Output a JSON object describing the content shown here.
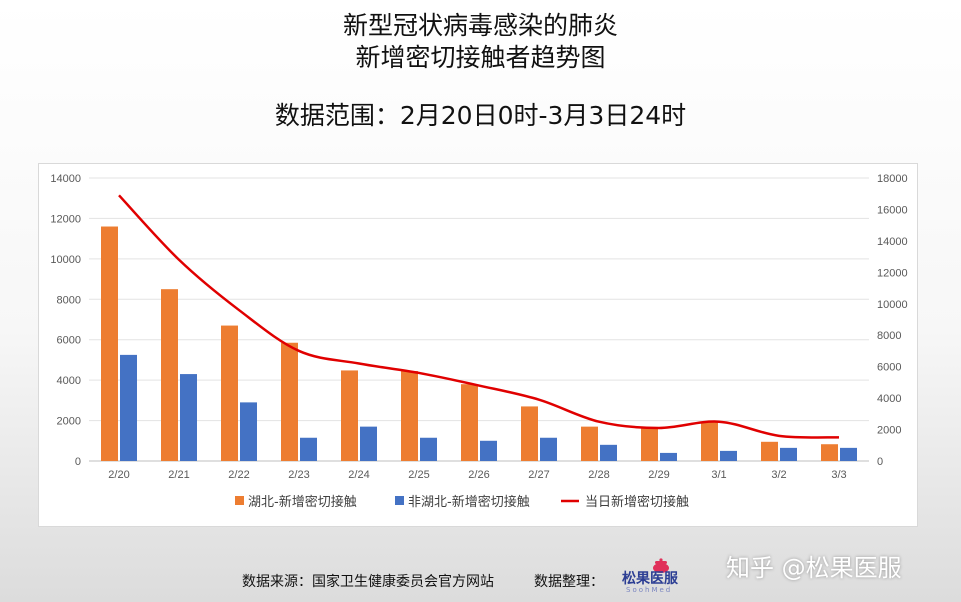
{
  "header": {
    "title_line1": "新型冠状病毒感染的肺炎",
    "title_line2": "新增密切接触者趋势图",
    "date_range": "数据范围：2月20日0时-3月3日24时"
  },
  "footer": {
    "source": "数据来源：国家卫生健康委员会官方网站",
    "organizer_label": "数据整理：",
    "logo_name": "松果医服",
    "logo_sub": "SoohMed",
    "watermark": "知乎 @松果医服"
  },
  "colors": {
    "hubei": "#ed7d31",
    "non_hubei": "#4472c4",
    "total": "#e00000"
  },
  "chart_data": {
    "type": "bar",
    "categories": [
      "2/20",
      "2/21",
      "2/22",
      "2/23",
      "2/24",
      "2/25",
      "2/26",
      "2/27",
      "2/28",
      "2/29",
      "3/1",
      "3/2",
      "3/3"
    ],
    "series": [
      {
        "name": "湖北-新增密切接触",
        "type": "bar",
        "axis": "left",
        "values": [
          11600,
          8500,
          6700,
          5850,
          4480,
          4450,
          3800,
          2700,
          1700,
          1650,
          1950,
          950,
          830
        ]
      },
      {
        "name": "非湖北-新增密切接触",
        "type": "bar",
        "axis": "left",
        "values": [
          5250,
          4300,
          2900,
          1150,
          1700,
          1150,
          1000,
          1150,
          800,
          400,
          500,
          650,
          650
        ]
      },
      {
        "name": "当日新增密切接触",
        "type": "line",
        "axis": "right",
        "values": [
          16900,
          12800,
          9600,
          7000,
          6200,
          5600,
          4800,
          3900,
          2500,
          2100,
          2500,
          1600,
          1500
        ]
      }
    ],
    "y_left": {
      "min": 0,
      "max": 14000,
      "step": 2000,
      "ticks": [
        "0",
        "2000",
        "4000",
        "6000",
        "8000",
        "10000",
        "12000",
        "14000"
      ]
    },
    "y_right": {
      "min": 0,
      "max": 18000,
      "step": 2000,
      "ticks": [
        "0",
        "2000",
        "4000",
        "6000",
        "8000",
        "10000",
        "12000",
        "14000",
        "16000",
        "18000"
      ]
    },
    "grid": true,
    "legend": "bottom"
  }
}
